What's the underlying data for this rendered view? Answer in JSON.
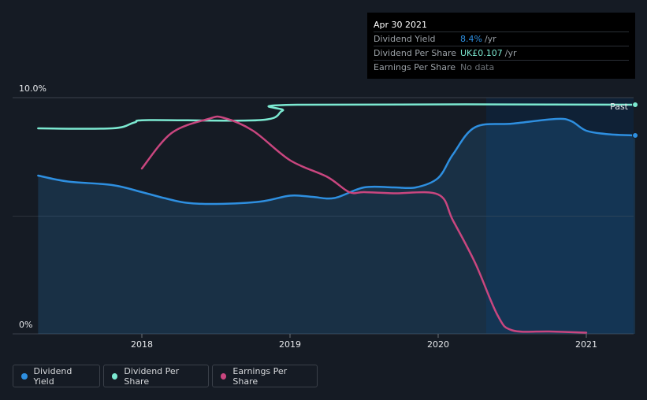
{
  "chart_data": {
    "type": "line",
    "x_ticks": [
      "2018",
      "2019",
      "2020",
      "2021"
    ],
    "y_ticks": [
      "10.0%",
      "0%"
    ],
    "y_range_percent": [
      0,
      10
    ],
    "past_label": "Past",
    "series": [
      {
        "name": "Dividend Yield",
        "color": "#2e8fe0",
        "points": [
          [
            2017.3,
            6.7
          ],
          [
            2017.5,
            6.45
          ],
          [
            2017.8,
            6.3
          ],
          [
            2018.0,
            6.0
          ],
          [
            2018.15,
            5.75
          ],
          [
            2018.3,
            5.55
          ],
          [
            2018.5,
            5.5
          ],
          [
            2018.8,
            5.6
          ],
          [
            2019.0,
            5.85
          ],
          [
            2019.15,
            5.8
          ],
          [
            2019.3,
            5.75
          ],
          [
            2019.5,
            6.2
          ],
          [
            2019.7,
            6.2
          ],
          [
            2019.85,
            6.2
          ],
          [
            2020.0,
            6.6
          ],
          [
            2020.1,
            7.6
          ],
          [
            2020.25,
            8.75
          ],
          [
            2020.5,
            8.9
          ],
          [
            2020.8,
            9.1
          ],
          [
            2020.9,
            9.0
          ],
          [
            2021.0,
            8.6
          ],
          [
            2021.15,
            8.45
          ],
          [
            2021.33,
            8.4
          ]
        ]
      },
      {
        "name": "Dividend Per Share",
        "color": "#7ce9d1",
        "points": [
          [
            2017.3,
            8.7
          ],
          [
            2017.8,
            8.7
          ],
          [
            2017.95,
            8.95
          ],
          [
            2018.05,
            9.05
          ],
          [
            2018.8,
            9.05
          ],
          [
            2018.95,
            9.45
          ],
          [
            2019.05,
            9.7
          ],
          [
            2021.33,
            9.7
          ]
        ]
      },
      {
        "name": "Earnings Per Share",
        "color": "#c9467f",
        "points": [
          [
            2018.0,
            7.0
          ],
          [
            2018.2,
            8.5
          ],
          [
            2018.45,
            9.1
          ],
          [
            2018.55,
            9.15
          ],
          [
            2018.75,
            8.6
          ],
          [
            2019.0,
            7.35
          ],
          [
            2019.25,
            6.65
          ],
          [
            2019.4,
            6.0
          ],
          [
            2019.5,
            6.0
          ],
          [
            2019.7,
            5.95
          ],
          [
            2020.0,
            5.9
          ],
          [
            2020.1,
            4.8
          ],
          [
            2020.25,
            3.0
          ],
          [
            2020.4,
            0.8
          ],
          [
            2020.5,
            0.15
          ],
          [
            2020.75,
            0.1
          ],
          [
            2021.0,
            0.05
          ]
        ]
      }
    ]
  },
  "tooltip": {
    "date": "Apr 30 2021",
    "rows": [
      {
        "label": "Dividend Yield",
        "value": "8.4%",
        "unit": "/yr",
        "color": "#2e8fe0"
      },
      {
        "label": "Dividend Per Share",
        "value": "UK£0.107",
        "unit": "/yr",
        "color": "#7ce9d1"
      },
      {
        "label": "Earnings Per Share",
        "value": "No data",
        "unit": "",
        "color": "#6e7378"
      }
    ]
  },
  "legend": [
    {
      "label": "Dividend Yield",
      "color": "#2e8fe0"
    },
    {
      "label": "Dividend Per Share",
      "color": "#7ce9d1"
    },
    {
      "label": "Earnings Per Share",
      "color": "#c9467f"
    }
  ]
}
